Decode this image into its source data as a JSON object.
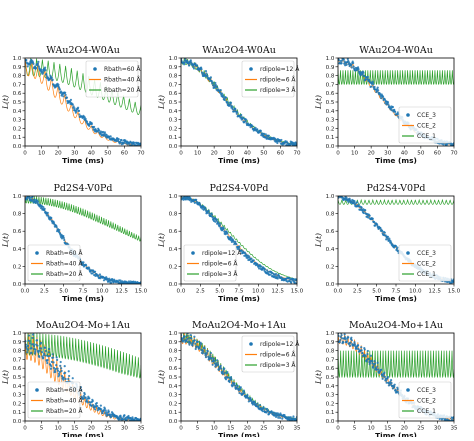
{
  "colors": {
    "blue": "#1f77b4",
    "orange": "#ff7f0e",
    "green": "#2ca02c"
  },
  "chart_data": [
    {
      "type": "line",
      "title": "WAu2O4-W0Au",
      "xlabel": "Time (ms)",
      "ylabel": "L(t)",
      "xlim": [
        0,
        70
      ],
      "ylim": [
        0,
        1.0
      ],
      "xticks": [
        0,
        10,
        20,
        30,
        40,
        50,
        60,
        70
      ],
      "yticks": [
        0.0,
        0.1,
        0.2,
        0.3,
        0.4,
        0.5,
        0.6,
        0.7,
        0.8,
        0.9,
        1.0
      ],
      "legend": "top-right",
      "series": [
        {
          "name": "Rbath=60 Å",
          "style": "scatter",
          "color": "blue",
          "T2": 34,
          "osc_amp": 0.08,
          "osc_period": 4
        },
        {
          "name": "Rbath=40 Å",
          "style": "line",
          "color": "orange",
          "T2": 33,
          "osc_amp": 0.2,
          "osc_period": 4
        },
        {
          "name": "Rbath=20 Å",
          "style": "line",
          "color": "green",
          "T2": 80,
          "osc_amp": 0.2,
          "osc_period": 3.5
        }
      ]
    },
    {
      "type": "line",
      "title": "WAu2O4-W0Au",
      "xlabel": "Time (ms)",
      "ylabel": "L(t)",
      "xlim": [
        0,
        70
      ],
      "ylim": [
        0,
        1.0
      ],
      "xticks": [
        0,
        10,
        20,
        30,
        40,
        50,
        60,
        70
      ],
      "yticks": [
        0.0,
        0.1,
        0.2,
        0.3,
        0.4,
        0.5,
        0.6,
        0.7,
        0.8,
        0.9,
        1.0
      ],
      "legend": "top-right",
      "series": [
        {
          "name": "rdipole=12 Å",
          "style": "scatter",
          "color": "blue",
          "T2": 35,
          "osc_amp": 0.05,
          "osc_period": 3
        },
        {
          "name": "rdipole=6 Å",
          "style": "line",
          "color": "orange",
          "T2": 35,
          "osc_amp": 0.06,
          "osc_period": 3
        },
        {
          "name": "rdipole=3 Å",
          "style": "line",
          "color": "green",
          "T2": 36,
          "osc_amp": 0.07,
          "osc_period": 2
        }
      ]
    },
    {
      "type": "line",
      "title": "WAu2O4-W0Au",
      "xlabel": "Time (ms)",
      "ylabel": "L(t)",
      "xlim": [
        0,
        70
      ],
      "ylim": [
        0,
        1.0
      ],
      "xticks": [
        0,
        10,
        20,
        30,
        40,
        50,
        60,
        70
      ],
      "yticks": [
        0.0,
        0.1,
        0.2,
        0.3,
        0.4,
        0.5,
        0.6,
        0.7,
        0.8,
        0.9,
        1.0
      ],
      "legend": "bottom-right",
      "series": [
        {
          "name": "CCE_3",
          "style": "scatter",
          "color": "blue",
          "T2": 36,
          "osc_amp": 0.05,
          "osc_period": 3
        },
        {
          "name": "CCE_2",
          "style": "line",
          "color": "orange",
          "T2": 35,
          "osc_amp": 0.06,
          "osc_period": 3
        },
        {
          "name": "CCE_1",
          "style": "line",
          "color": "green",
          "T2": 0,
          "osc_amp": 0.16,
          "osc_period": 1.5,
          "center": 0.86
        }
      ]
    },
    {
      "type": "line",
      "title": "Pd2S4-V0Pd",
      "xlabel": "Time (ms)",
      "ylabel": "L(t)",
      "xlim": [
        0,
        15
      ],
      "ylim": [
        0,
        1.0
      ],
      "xticks": [
        0.0,
        2.5,
        5.0,
        7.5,
        10.0,
        12.5,
        15.0
      ],
      "yticks": [
        0.0,
        0.2,
        0.4,
        0.6,
        0.8,
        1.0
      ],
      "legend": "bottom-left",
      "series": [
        {
          "name": "Rbath=60 Å",
          "style": "scatter",
          "color": "blue",
          "T2": 6.2,
          "osc_amp": 0.02,
          "osc_period": 0.5
        },
        {
          "name": "Rbath=40 Å",
          "style": "line",
          "color": "orange",
          "T2": 6.3,
          "osc_amp": 0.03,
          "osc_period": 0.5
        },
        {
          "name": "Rbath=20 Å",
          "style": "line",
          "color": "green",
          "T2": 19,
          "osc_amp": 0.08,
          "osc_period": 0.3
        }
      ]
    },
    {
      "type": "line",
      "title": "Pd2S4-V0Pd",
      "xlabel": "Time (ms)",
      "ylabel": "L(t)",
      "xlim": [
        0,
        15
      ],
      "ylim": [
        0,
        1.0
      ],
      "xticks": [
        0.0,
        2.5,
        5.0,
        7.5,
        10.0,
        12.5,
        15.0
      ],
      "yticks": [
        0.0,
        0.2,
        0.4,
        0.6,
        0.8,
        1.0
      ],
      "legend": "bottom-left",
      "series": [
        {
          "name": "rdipole=12 Å",
          "style": "scatter",
          "color": "blue",
          "T2": 8.0,
          "osc_amp": 0.02,
          "osc_period": 0.5
        },
        {
          "name": "rdipole=6 Å",
          "style": "line",
          "color": "orange",
          "T2": 8.2,
          "osc_amp": 0.02,
          "osc_period": 0.5
        },
        {
          "name": "rdipole=3 Å",
          "style": "line",
          "color": "green",
          "T2": 8.8,
          "osc_amp": 0.03,
          "osc_period": 0.4
        }
      ]
    },
    {
      "type": "line",
      "title": "Pd2S4-V0Pd",
      "xlabel": "Time (ms)",
      "ylabel": "L(t)",
      "xlim": [
        0,
        15
      ],
      "ylim": [
        0,
        1.0
      ],
      "xticks": [
        0.0,
        2.5,
        5.0,
        7.5,
        10.0,
        12.5,
        15.0
      ],
      "yticks": [
        0.0,
        0.2,
        0.4,
        0.6,
        0.8,
        1.0
      ],
      "legend": "bottom-right",
      "series": [
        {
          "name": "CCE_3",
          "style": "scatter",
          "color": "blue",
          "T2": 8.0,
          "osc_amp": 0.02,
          "osc_period": 0.5
        },
        {
          "name": "CCE_2",
          "style": "line",
          "color": "orange",
          "T2": 8.0,
          "osc_amp": 0.02,
          "osc_period": 0.5
        },
        {
          "name": "CCE_1",
          "style": "line",
          "color": "green",
          "T2": 0,
          "osc_amp": 0.05,
          "osc_period": 0.5,
          "center": 0.955
        }
      ]
    },
    {
      "type": "line",
      "title": "MoAu2O4-Mo+1Au",
      "xlabel": "Time (ms)",
      "ylabel": "L(t)",
      "xlim": [
        0,
        35
      ],
      "ylim": [
        0,
        1.0
      ],
      "xticks": [
        0,
        5,
        10,
        15,
        20,
        25,
        30,
        35
      ],
      "yticks": [
        0.0,
        0.1,
        0.2,
        0.3,
        0.4,
        0.5,
        0.6,
        0.7,
        0.8,
        0.9,
        1.0
      ],
      "legend": "bottom-left",
      "series": [
        {
          "name": "Rbath=60 Å",
          "style": "scatter",
          "color": "blue",
          "T2": 17,
          "osc_amp": 0.2,
          "osc_period": 1.2
        },
        {
          "name": "Rbath=40 Å",
          "style": "line",
          "color": "orange",
          "T2": 16,
          "osc_amp": 0.3,
          "osc_period": 1.2
        },
        {
          "name": "Rbath=20 Å",
          "style": "line",
          "color": "green",
          "T2": 60,
          "osc_amp": 0.25,
          "osc_period": 0.9
        }
      ]
    },
    {
      "type": "line",
      "title": "MoAu2O4-Mo+1Au",
      "xlabel": "Time (ms)",
      "ylabel": "L(t)",
      "xlim": [
        0,
        35
      ],
      "ylim": [
        0,
        1.0
      ],
      "xticks": [
        0,
        5,
        10,
        15,
        20,
        25,
        30,
        35
      ],
      "yticks": [
        0.0,
        0.1,
        0.2,
        0.3,
        0.4,
        0.5,
        0.6,
        0.7,
        0.8,
        0.9,
        1.0
      ],
      "legend": "top-right",
      "series": [
        {
          "name": "rdipole=12 Å",
          "style": "scatter",
          "color": "blue",
          "T2": 18,
          "osc_amp": 0.1,
          "osc_period": 1.0
        },
        {
          "name": "rdipole=6 Å",
          "style": "line",
          "color": "orange",
          "T2": 18,
          "osc_amp": 0.12,
          "osc_period": 1.0
        },
        {
          "name": "rdipole=3 Å",
          "style": "line",
          "color": "green",
          "T2": 18.5,
          "osc_amp": 0.1,
          "osc_period": 0.8
        }
      ]
    },
    {
      "type": "line",
      "title": "MoAu2O4-Mo+1Au",
      "xlabel": "Time (ms)",
      "ylabel": "L(t)",
      "xlim": [
        0,
        35
      ],
      "ylim": [
        0,
        1.0
      ],
      "xticks": [
        0,
        5,
        10,
        15,
        20,
        25,
        30,
        35
      ],
      "yticks": [
        0.0,
        0.1,
        0.2,
        0.3,
        0.4,
        0.5,
        0.6,
        0.7,
        0.8,
        0.9,
        1.0
      ],
      "legend": "bottom-right",
      "series": [
        {
          "name": "CCE_3",
          "style": "scatter",
          "color": "blue",
          "T2": 18,
          "osc_amp": 0.1,
          "osc_period": 1.0
        },
        {
          "name": "CCE_2",
          "style": "line",
          "color": "orange",
          "T2": 18,
          "osc_amp": 0.12,
          "osc_period": 1.0
        },
        {
          "name": "CCE_1",
          "style": "line",
          "color": "green",
          "T2": 0,
          "osc_amp": 0.3,
          "osc_period": 0.8,
          "center": 0.8
        }
      ]
    }
  ]
}
